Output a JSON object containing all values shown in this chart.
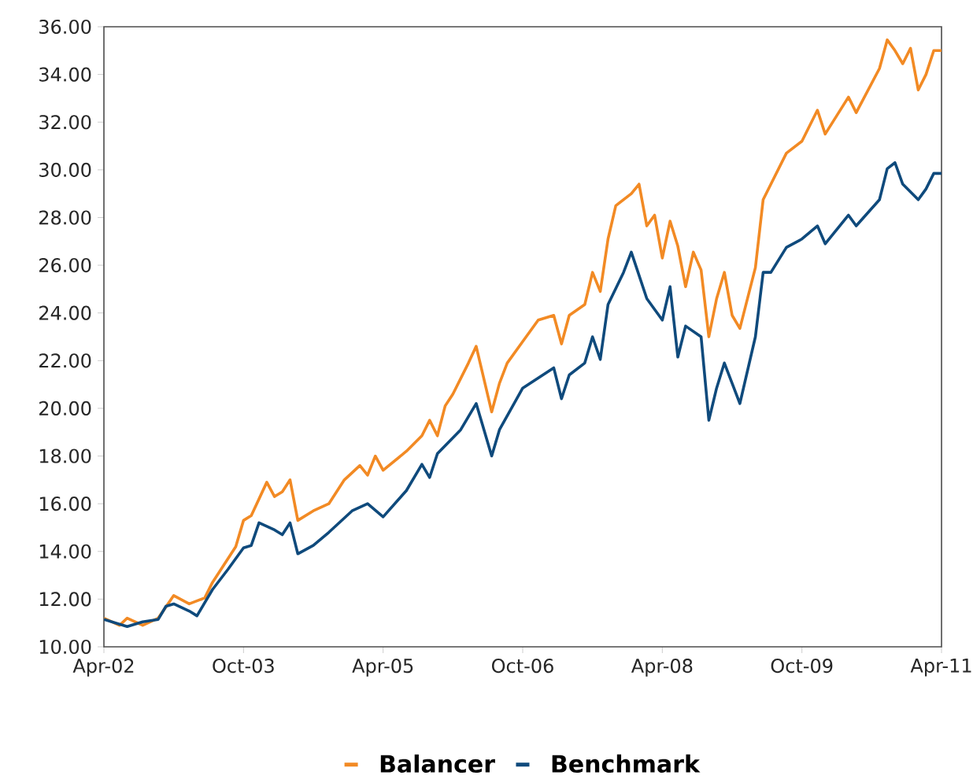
{
  "chart_data": {
    "type": "line",
    "xlim": [
      "2002-04",
      "2011-04"
    ],
    "xticks": [
      {
        "value": "2002-04",
        "label": "Apr-02"
      },
      {
        "value": "2003-10",
        "label": "Oct-03"
      },
      {
        "value": "2005-04",
        "label": "Apr-05"
      },
      {
        "value": "2006-10",
        "label": "Oct-06"
      },
      {
        "value": "2008-04",
        "label": "Apr-08"
      },
      {
        "value": "2009-10",
        "label": "Oct-09"
      },
      {
        "value": "2011-04",
        "label": "Apr-11"
      }
    ],
    "ylim": [
      10,
      36
    ],
    "yticks": [
      {
        "value": 10,
        "label": "10.00"
      },
      {
        "value": 12,
        "label": "12.00"
      },
      {
        "value": 14,
        "label": "14.00"
      },
      {
        "value": 16,
        "label": "16.00"
      },
      {
        "value": 18,
        "label": "18.00"
      },
      {
        "value": 20,
        "label": "20.00"
      },
      {
        "value": 22,
        "label": "22.00"
      },
      {
        "value": 24,
        "label": "24.00"
      },
      {
        "value": 26,
        "label": "26.00"
      },
      {
        "value": 28,
        "label": "28.00"
      },
      {
        "value": 30,
        "label": "30.00"
      },
      {
        "value": 32,
        "label": "32.00"
      },
      {
        "value": 34,
        "label": "34.00"
      },
      {
        "value": 36,
        "label": "36.00"
      }
    ],
    "grid": false,
    "legend": "bottom",
    "marker": "none",
    "line_style": "solid",
    "series": [
      {
        "name": "Balancer",
        "color": "#f28a24",
        "x": [
          "2002-04",
          "2002-06",
          "2002-07",
          "2002-09",
          "2002-10",
          "2002-11",
          "2003-01",
          "2003-03",
          "2003-05",
          "2003-06",
          "2003-09",
          "2003-10",
          "2003-11",
          "2004-01",
          "2004-02",
          "2004-03",
          "2004-04",
          "2004-05",
          "2004-07",
          "2004-09",
          "2004-11",
          "2005-01",
          "2005-02",
          "2005-03",
          "2005-04",
          "2005-07",
          "2005-09",
          "2005-10",
          "2005-11",
          "2005-12",
          "2006-01",
          "2006-03",
          "2006-04",
          "2006-06",
          "2006-07",
          "2006-08",
          "2006-10",
          "2006-12",
          "2007-02",
          "2007-03",
          "2007-04",
          "2007-06",
          "2007-07",
          "2007-08",
          "2007-09",
          "2007-10",
          "2007-12",
          "2008-01",
          "2008-02",
          "2008-03",
          "2008-04",
          "2008-05",
          "2008-06",
          "2008-07",
          "2008-08",
          "2008-09",
          "2008-10",
          "2008-11",
          "2008-12",
          "2009-01",
          "2009-02",
          "2009-04",
          "2009-05",
          "2009-06",
          "2009-08",
          "2009-10",
          "2009-12",
          "2010-01",
          "2010-04",
          "2010-05",
          "2010-08",
          "2010-09",
          "2010-10",
          "2010-11",
          "2010-12",
          "2011-01",
          "2011-02",
          "2011-03",
          "2011-04"
        ],
        "values": [
          11.2,
          10.9,
          11.2,
          10.9,
          11.05,
          11.2,
          12.15,
          11.8,
          12.05,
          12.7,
          14.2,
          15.3,
          15.5,
          16.9,
          16.3,
          16.5,
          17.0,
          15.3,
          15.7,
          16.0,
          17.0,
          17.6,
          17.2,
          18.0,
          17.4,
          18.2,
          18.85,
          19.5,
          18.85,
          20.1,
          20.6,
          21.9,
          22.6,
          19.85,
          21.05,
          21.9,
          22.8,
          23.7,
          23.9,
          22.7,
          23.9,
          24.35,
          25.7,
          24.9,
          27.1,
          28.5,
          29.0,
          29.4,
          27.65,
          28.1,
          26.3,
          27.85,
          26.8,
          25.1,
          26.55,
          25.8,
          23.0,
          24.6,
          25.7,
          23.9,
          23.35,
          25.9,
          28.75,
          29.4,
          30.7,
          31.2,
          32.5,
          31.5,
          33.05,
          32.4,
          34.25,
          35.45,
          35.0,
          34.45,
          35.1,
          33.35,
          34.0,
          35.0,
          35.0
        ]
      },
      {
        "name": "Benchmark",
        "color": "#0f4a7c",
        "x": [
          "2002-04",
          "2002-07",
          "2002-09",
          "2002-11",
          "2002-12",
          "2003-01",
          "2003-03",
          "2003-04",
          "2003-06",
          "2003-08",
          "2003-10",
          "2003-11",
          "2003-12",
          "2004-02",
          "2004-03",
          "2004-04",
          "2004-05",
          "2004-07",
          "2004-09",
          "2004-12",
          "2005-02",
          "2005-04",
          "2005-07",
          "2005-09",
          "2005-10",
          "2005-11",
          "2006-02",
          "2006-04",
          "2006-06",
          "2006-07",
          "2006-10",
          "2007-02",
          "2007-03",
          "2007-04",
          "2007-06",
          "2007-07",
          "2007-08",
          "2007-09",
          "2007-11",
          "2007-12",
          "2008-02",
          "2008-04",
          "2008-05",
          "2008-06",
          "2008-07",
          "2008-09",
          "2008-10",
          "2008-11",
          "2008-12",
          "2009-01",
          "2009-02",
          "2009-04",
          "2009-05",
          "2009-06",
          "2009-08",
          "2009-10",
          "2009-12",
          "2010-01",
          "2010-04",
          "2010-05",
          "2010-08",
          "2010-09",
          "2010-10",
          "2010-11",
          "2011-01",
          "2011-02",
          "2011-03",
          "2011-04"
        ],
        "values": [
          11.15,
          10.85,
          11.05,
          11.15,
          11.7,
          11.8,
          11.5,
          11.3,
          12.4,
          13.25,
          14.15,
          14.25,
          15.2,
          14.9,
          14.7,
          15.2,
          13.9,
          14.25,
          14.8,
          15.7,
          16.0,
          15.45,
          16.55,
          17.65,
          17.1,
          18.1,
          19.1,
          20.2,
          18.0,
          19.1,
          20.85,
          21.7,
          20.4,
          21.4,
          21.9,
          23.0,
          22.05,
          24.35,
          25.7,
          26.55,
          24.6,
          23.7,
          25.1,
          22.15,
          23.45,
          23.0,
          19.5,
          20.85,
          21.9,
          21.05,
          20.2,
          23.0,
          25.7,
          25.7,
          26.75,
          27.1,
          27.65,
          26.9,
          28.1,
          27.65,
          28.75,
          30.05,
          30.3,
          29.4,
          28.75,
          29.2,
          29.85,
          29.85
        ]
      }
    ]
  }
}
